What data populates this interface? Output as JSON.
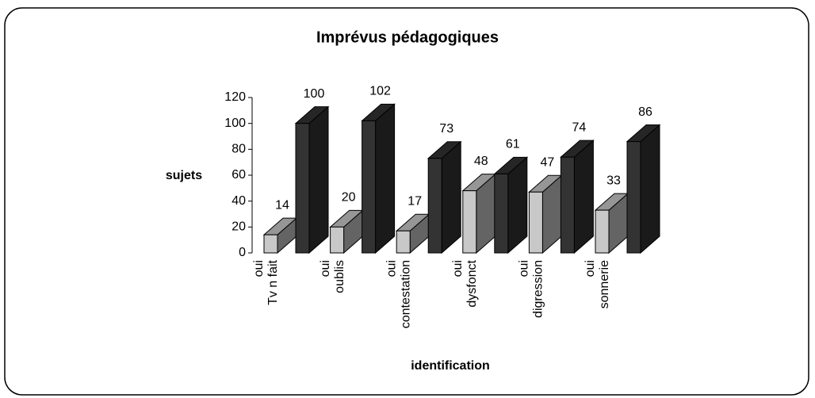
{
  "chart_data": {
    "type": "bar3d",
    "title": "Imprévus pédagogiques",
    "ylabel": "sujets",
    "xlabel": "identification",
    "categories": [
      [
        "oui",
        "Tv n fait"
      ],
      [
        "oui",
        "oublis"
      ],
      [
        "oui",
        "contestation"
      ],
      [
        "oui",
        "dysfonct"
      ],
      [
        "oui",
        "digression"
      ],
      [
        "oui",
        "sonnerie"
      ]
    ],
    "series": [
      {
        "color": "#c8c8c8",
        "values": [
          14,
          20,
          17,
          48,
          47,
          33
        ]
      },
      {
        "color": "#333333",
        "values": [
          100,
          102,
          73,
          61,
          74,
          86
        ]
      }
    ],
    "ylim": [
      0,
      120
    ],
    "yticks": [
      0,
      20,
      40,
      60,
      80,
      100,
      120
    ]
  }
}
